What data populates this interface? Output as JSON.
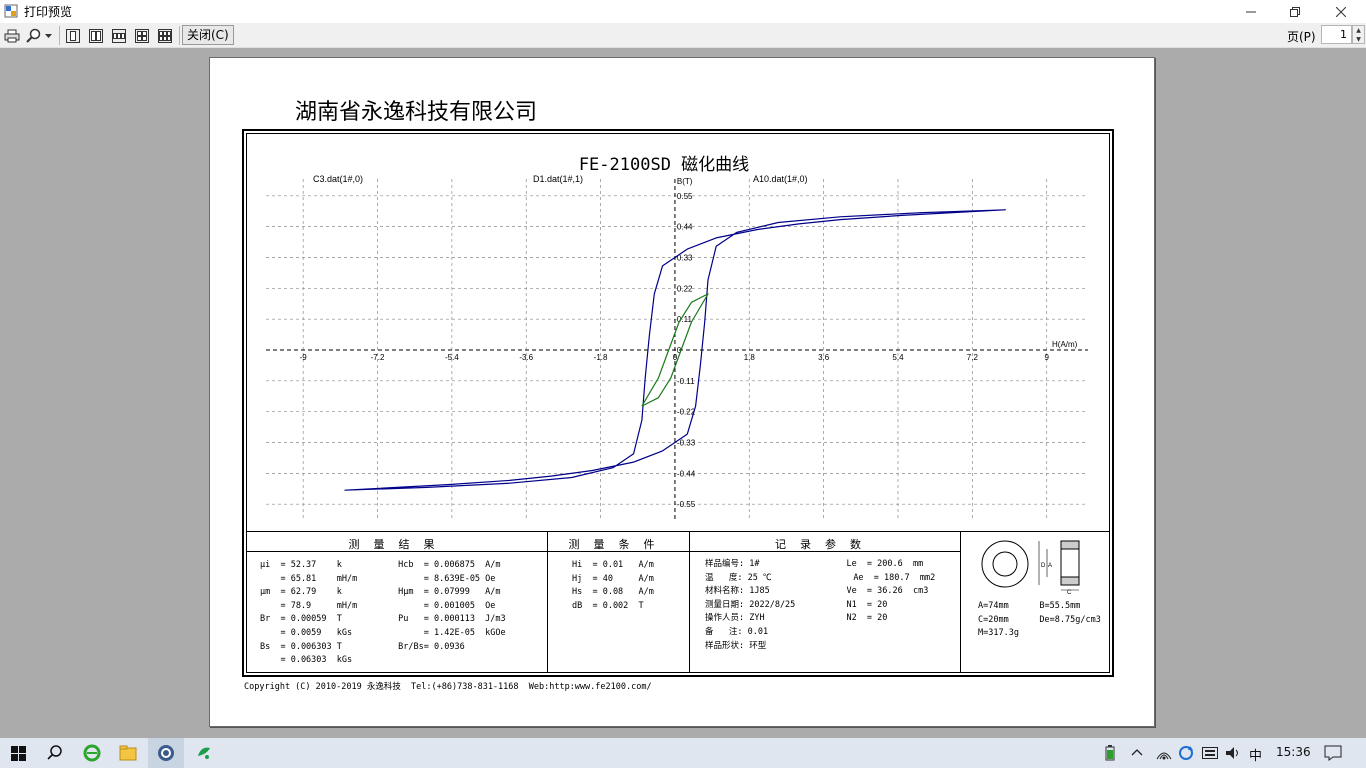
{
  "window": {
    "title": "打印预览"
  },
  "toolbar": {
    "close_label": "关闭(C)",
    "page_label": "页(P)",
    "page_value": "1"
  },
  "doc": {
    "company": "湖南省永逸科技有限公司",
    "copyright": "Copyright (C) 2010-2019 永逸科技  Tel:(+86)738-831-1168  Web:http:www.fe2100.com/"
  },
  "chart_data": {
    "type": "line",
    "title": "FE-2100SD 磁化曲线",
    "xlabel": "H(A/m)",
    "ylabel": "B(T)",
    "xlim": [
      -9.9,
      10
    ],
    "ylim": [
      -0.61,
      0.61
    ],
    "x_ticks": [
      "-9",
      "-7.2",
      "-5.4",
      "-3.6",
      "-1.8",
      "0",
      "1.8",
      "3.6",
      "5.4",
      "7.2",
      "9"
    ],
    "y_ticks": [
      "0.55",
      "0.44",
      "0.33",
      "0.22",
      "0.11",
      "0",
      "-0.11",
      "-0.22",
      "-0.33",
      "-0.44",
      "-0.55"
    ],
    "grid": true,
    "series": [
      {
        "name": "C3.dat(1#,0)",
        "color": "#00008b",
        "points": [
          [
            -8,
            -0.5
          ],
          [
            -6,
            -0.49
          ],
          [
            -4,
            -0.475
          ],
          [
            -2.5,
            -0.455
          ],
          [
            -1.5,
            -0.42
          ],
          [
            -1,
            -0.37
          ],
          [
            -0.8,
            -0.25
          ],
          [
            -0.72,
            -0.1
          ],
          [
            -0.62,
            0.05
          ],
          [
            -0.5,
            0.2
          ],
          [
            -0.3,
            0.3
          ],
          [
            0.3,
            0.36
          ],
          [
            1,
            0.4
          ],
          [
            2,
            0.43
          ],
          [
            3,
            0.45
          ],
          [
            4,
            0.465
          ],
          [
            5.5,
            0.48
          ],
          [
            8,
            0.5
          ],
          [
            6,
            0.49
          ],
          [
            4,
            0.475
          ],
          [
            2.5,
            0.455
          ],
          [
            1.5,
            0.42
          ],
          [
            1,
            0.37
          ],
          [
            0.8,
            0.25
          ],
          [
            0.72,
            0.1
          ],
          [
            0.62,
            -0.05
          ],
          [
            0.5,
            -0.2
          ],
          [
            0.3,
            -0.3
          ],
          [
            -0.3,
            -0.36
          ],
          [
            -1,
            -0.4
          ],
          [
            -2,
            -0.43
          ],
          [
            -3,
            -0.45
          ],
          [
            -4,
            -0.465
          ],
          [
            -5.5,
            -0.48
          ],
          [
            -8,
            -0.5
          ]
        ]
      },
      {
        "name": "D1.dat(1#,1)",
        "color": "#1a7a1a",
        "points": [
          [
            -0.8,
            -0.2
          ],
          [
            -0.4,
            -0.1
          ],
          [
            -0.15,
            0
          ],
          [
            0.1,
            0.1
          ],
          [
            0.4,
            0.17
          ],
          [
            0.8,
            0.2
          ],
          [
            0.4,
            0.1
          ],
          [
            0.15,
            0
          ],
          [
            -0.1,
            -0.1
          ],
          [
            -0.4,
            -0.17
          ],
          [
            -0.8,
            -0.2
          ]
        ]
      },
      {
        "name": "A10.dat(1#,0)",
        "color": "#cc0000",
        "points": []
      }
    ]
  },
  "sections": {
    "results": {
      "header": "测量结果",
      "lines": [
        "μi  = 52.37    k           Hcb  = 0.006875  A/m",
        "    = 65.81    mH/m             = 8.639E-05 Oe",
        "μm  = 62.79    k           Hμm  = 0.07999   A/m",
        "    = 78.9     mH/m             = 0.001005  Oe",
        "Br  = 0.00059  T           Pu   = 0.000113  J/m3",
        "    = 0.0059   kGs              = 1.42E-05  kGOe",
        "Bs  = 0.006303 T           Br/Bs= 0.0936",
        "    = 0.06303  kGs"
      ]
    },
    "conditions": {
      "header": "测量条件",
      "lines": [
        "Hi  = 0.01   A/m",
        "Hj  = 40     A/m",
        "Hs  = 0.08   A/m",
        "dB  = 0.002  T"
      ]
    },
    "records": {
      "header": "记录参数",
      "lines": [
        "样品编号: 1#                 Le  = 200.6  mm",
        "温   度: 25 ℃                Ae  = 180.7  mm2",
        "材料名称: 1J85               Ve  = 36.26  cm3",
        "测量日期: 2022/8/25          N1  = 20",
        "操作人员: ZYH                N2  = 20",
        "备   注: 0.01",
        "样品形状: 环型"
      ]
    },
    "sample": {
      "lines": [
        "A=74mm      B=55.5mm",
        "C=20mm      De=8.75g/cm3",
        "M=317.3g"
      ],
      "label_D": "D",
      "label_A": "A",
      "label_C": "C"
    }
  },
  "taskbar": {
    "ime": "中",
    "time": "15:36"
  },
  "icons": [
    "app-icon",
    "minimize-icon",
    "restore-icon",
    "close-icon",
    "print-icon",
    "zoom-icon",
    "one-page-icon",
    "two-pages-icon",
    "three-pages-icon",
    "four-pages-icon",
    "six-pages-icon",
    "windows-start-icon",
    "search-icon",
    "ie-icon",
    "folder-icon",
    "app-globe-icon",
    "app-green-icon",
    "battery-icon",
    "chevron-up-icon",
    "wifi-icon",
    "sync-icon",
    "keyboard-icon",
    "volume-icon",
    "notification-icon"
  ]
}
